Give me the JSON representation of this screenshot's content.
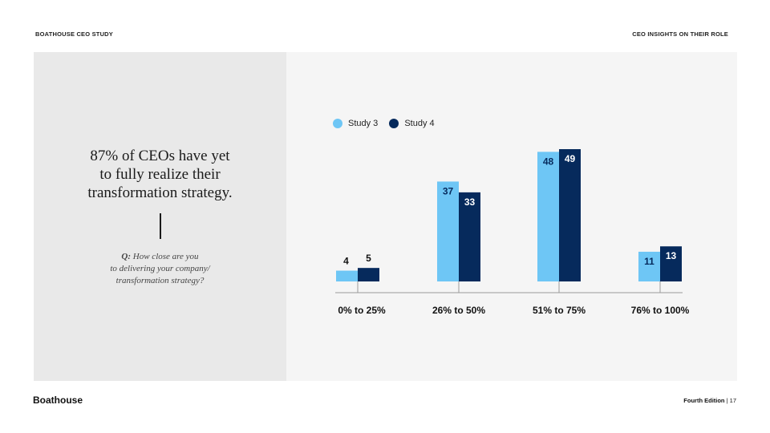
{
  "header": {
    "left_label": "BOATHOUSE CEO STUDY",
    "right_label": "CEO INSIGHTS ON THEIR ROLE"
  },
  "headline": {
    "line1": "87% of CEOs have yet",
    "line2": "to fully realize their",
    "line3": "transformation strategy."
  },
  "question": {
    "prefix": "Q:",
    "line1": " How close are you",
    "line2": "to delivering your company/",
    "line3": "transformation strategy?"
  },
  "footer": {
    "logo": "Boathouse",
    "edition": "Fourth Edition",
    "separator": " | ",
    "page": "17"
  },
  "colors": {
    "study3": "#6ec6f5",
    "study4": "#062a5c",
    "axis": "#9a9a9a"
  },
  "chart_data": {
    "type": "bar",
    "categories": [
      "0% to 25%",
      "26% to 50%",
      "51% to 75%",
      "76% to 100%"
    ],
    "series": [
      {
        "name": "Study 3",
        "values": [
          4,
          37,
          48,
          11
        ]
      },
      {
        "name": "Study 4",
        "values": [
          5,
          33,
          49,
          13
        ]
      }
    ],
    "legend_position": "top-left",
    "grid": false,
    "ylim": [
      0,
      49
    ]
  }
}
